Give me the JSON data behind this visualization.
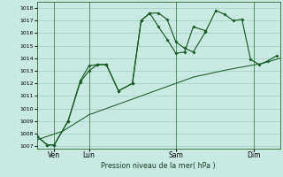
{
  "xlabel": "Pression niveau de la mer( hPa )",
  "ylim": [
    1006.8,
    1018.5
  ],
  "xlim": [
    0,
    14.0
  ],
  "yticks": [
    1007,
    1008,
    1009,
    1010,
    1011,
    1012,
    1013,
    1014,
    1015,
    1016,
    1017,
    1018
  ],
  "xtick_positions": [
    1.0,
    3.0,
    8.0,
    12.5
  ],
  "xtick_labels": [
    "Ven",
    "Lun",
    "Sam",
    "Dim"
  ],
  "vlines": [
    1.0,
    3.0,
    8.0,
    12.5
  ],
  "bg_color": "#c8eae2",
  "grid_color": "#9ecfbf",
  "line_color": "#1a5c28",
  "line1_x": [
    0.0,
    0.6,
    1.0,
    1.8,
    2.5,
    3.0,
    3.5,
    4.0,
    4.7,
    5.5,
    6.0,
    6.5,
    7.0,
    7.5,
    8.0,
    8.5,
    9.0,
    9.7,
    10.3,
    10.8,
    11.3,
    11.8,
    12.3,
    12.8,
    13.3,
    13.8
  ],
  "line1_y": [
    1007.8,
    1007.1,
    1007.1,
    1009.0,
    1012.1,
    1013.0,
    1013.5,
    1013.5,
    1011.4,
    1012.0,
    1017.0,
    1017.6,
    1017.6,
    1017.1,
    1015.3,
    1014.8,
    1014.5,
    1016.1,
    1017.8,
    1017.5,
    1017.0,
    1017.1,
    1013.9,
    1013.5,
    1013.8,
    1014.2
  ],
  "line2_x": [
    0.0,
    0.6,
    1.0,
    1.8,
    2.5,
    3.0,
    3.5,
    4.0,
    4.7,
    5.5,
    6.0,
    6.5,
    7.0,
    7.5,
    8.0,
    8.5,
    9.0,
    9.7
  ],
  "line2_y": [
    1007.8,
    1007.1,
    1007.1,
    1009.0,
    1012.2,
    1013.4,
    1013.5,
    1013.5,
    1011.4,
    1012.0,
    1017.0,
    1017.6,
    1016.5,
    1015.5,
    1014.4,
    1014.5,
    1016.5,
    1016.2
  ],
  "line3_x": [
    0.0,
    1.5,
    3.0,
    5.0,
    7.0,
    9.0,
    11.0,
    13.0,
    14.0
  ],
  "line3_y": [
    1007.5,
    1008.2,
    1009.5,
    1010.5,
    1011.5,
    1012.5,
    1013.1,
    1013.6,
    1014.0
  ]
}
